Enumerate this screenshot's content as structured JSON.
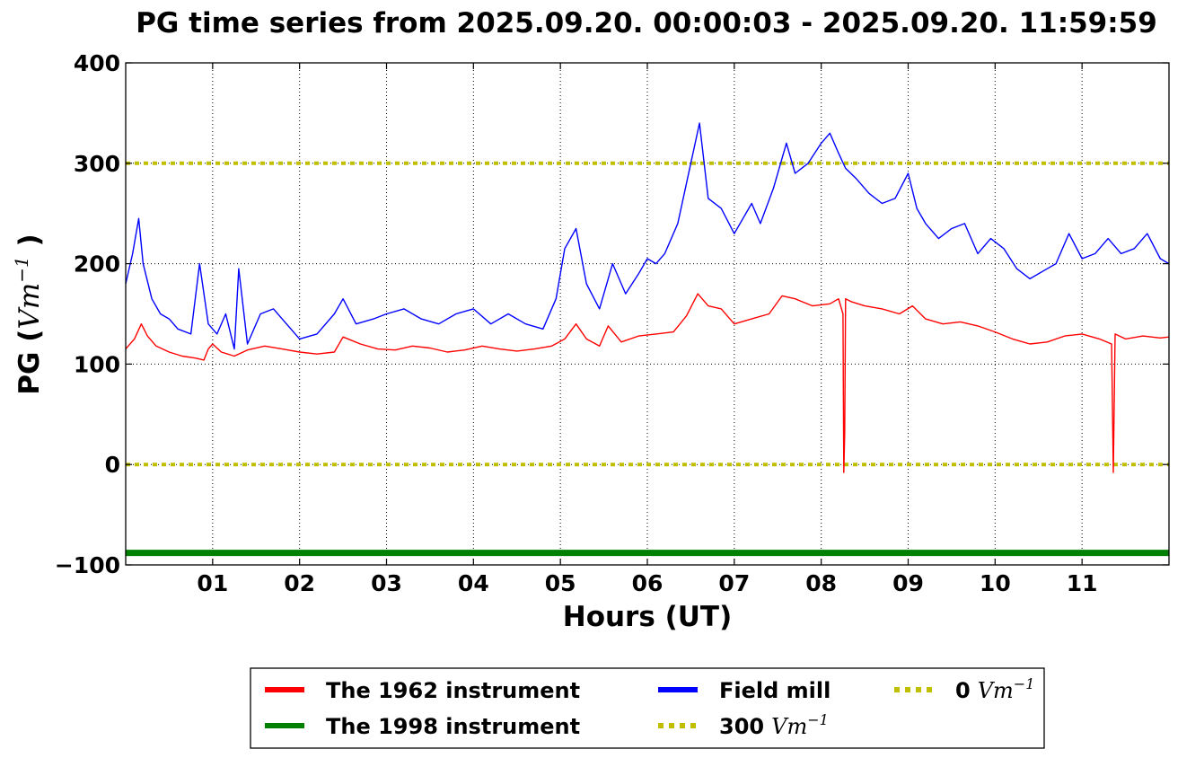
{
  "chart_data": {
    "type": "line",
    "title": "PG time series from 2025.09.20. 00:00:03 - 2025.09.20. 11:59:59",
    "xlabel": "Hours (UT)",
    "ylabel": {
      "prefix": "PG (",
      "unit": "Vm",
      "exp": "−1",
      "suffix": " )"
    },
    "xlim": [
      0,
      12
    ],
    "ylim": [
      -100,
      400
    ],
    "xticks": [
      {
        "v": 1,
        "label": "01"
      },
      {
        "v": 2,
        "label": "02"
      },
      {
        "v": 3,
        "label": "03"
      },
      {
        "v": 4,
        "label": "04"
      },
      {
        "v": 5,
        "label": "05"
      },
      {
        "v": 6,
        "label": "06"
      },
      {
        "v": 7,
        "label": "07"
      },
      {
        "v": 8,
        "label": "08"
      },
      {
        "v": 9,
        "label": "09"
      },
      {
        "v": 10,
        "label": "10"
      },
      {
        "v": 11,
        "label": "11"
      }
    ],
    "yticks": [
      {
        "v": -100,
        "label": "−100"
      },
      {
        "v": 0,
        "label": "0"
      },
      {
        "v": 100,
        "label": "100"
      },
      {
        "v": 200,
        "label": "200"
      },
      {
        "v": 300,
        "label": "300"
      },
      {
        "v": 400,
        "label": "400"
      }
    ],
    "grid": true,
    "legend_position": "below",
    "series": [
      {
        "name": "The 1962 instrument",
        "color": "#ff0000",
        "x": [
          0.0,
          0.1,
          0.18,
          0.25,
          0.35,
          0.5,
          0.65,
          0.8,
          0.9,
          0.95,
          1.0,
          1.1,
          1.25,
          1.4,
          1.6,
          1.8,
          2.0,
          2.2,
          2.4,
          2.5,
          2.7,
          2.9,
          3.1,
          3.3,
          3.5,
          3.7,
          3.9,
          4.1,
          4.3,
          4.5,
          4.7,
          4.9,
          5.05,
          5.18,
          5.3,
          5.45,
          5.55,
          5.7,
          5.9,
          6.1,
          6.3,
          6.45,
          6.58,
          6.7,
          6.85,
          7.0,
          7.2,
          7.4,
          7.55,
          7.7,
          7.9,
          8.1,
          8.2,
          8.25,
          8.26,
          8.27,
          8.28,
          8.35,
          8.5,
          8.7,
          8.9,
          9.05,
          9.2,
          9.4,
          9.6,
          9.8,
          10.0,
          10.2,
          10.4,
          10.6,
          10.8,
          11.0,
          11.2,
          11.34,
          11.36,
          11.38,
          11.5,
          11.7,
          11.9,
          12.0
        ],
        "y": [
          115,
          125,
          140,
          128,
          118,
          112,
          108,
          106,
          104,
          115,
          120,
          112,
          108,
          114,
          118,
          115,
          112,
          110,
          112,
          127,
          120,
          115,
          114,
          118,
          116,
          112,
          114,
          118,
          115,
          113,
          115,
          118,
          125,
          140,
          125,
          118,
          138,
          122,
          128,
          130,
          132,
          148,
          170,
          158,
          155,
          140,
          145,
          150,
          168,
          165,
          158,
          160,
          165,
          150,
          -8,
          30,
          165,
          162,
          158,
          155,
          150,
          158,
          145,
          140,
          142,
          138,
          132,
          125,
          120,
          122,
          128,
          130,
          125,
          120,
          -8,
          130,
          125,
          128,
          126,
          127
        ]
      },
      {
        "name": "The 1998 instrument",
        "color": "#008000",
        "x": [
          0,
          12
        ],
        "y": [
          -88,
          -88
        ]
      },
      {
        "name": "Field mill",
        "color": "#0000ff",
        "x": [
          0.0,
          0.08,
          0.15,
          0.2,
          0.3,
          0.4,
          0.5,
          0.6,
          0.75,
          0.85,
          0.95,
          1.05,
          1.15,
          1.25,
          1.3,
          1.4,
          1.55,
          1.7,
          1.85,
          2.0,
          2.2,
          2.4,
          2.5,
          2.65,
          2.85,
          3.0,
          3.2,
          3.4,
          3.6,
          3.8,
          4.0,
          4.2,
          4.4,
          4.6,
          4.8,
          4.95,
          5.05,
          5.18,
          5.3,
          5.45,
          5.6,
          5.75,
          5.9,
          6.0,
          6.1,
          6.2,
          6.35,
          6.5,
          6.6,
          6.7,
          6.85,
          7.0,
          7.1,
          7.2,
          7.3,
          7.45,
          7.6,
          7.7,
          7.85,
          8.0,
          8.1,
          8.2,
          8.28,
          8.4,
          8.55,
          8.7,
          8.85,
          9.0,
          9.1,
          9.2,
          9.35,
          9.5,
          9.65,
          9.8,
          9.95,
          10.1,
          10.25,
          10.4,
          10.6,
          10.7,
          10.85,
          11.0,
          11.15,
          11.3,
          11.45,
          11.6,
          11.75,
          11.9,
          12.0
        ],
        "y": [
          180,
          210,
          245,
          200,
          165,
          150,
          145,
          135,
          130,
          200,
          140,
          130,
          150,
          115,
          195,
          120,
          150,
          155,
          140,
          125,
          130,
          150,
          165,
          140,
          145,
          150,
          155,
          145,
          140,
          150,
          155,
          140,
          150,
          140,
          135,
          165,
          215,
          235,
          180,
          155,
          200,
          170,
          190,
          205,
          200,
          210,
          240,
          300,
          340,
          265,
          255,
          230,
          245,
          260,
          240,
          275,
          320,
          290,
          300,
          320,
          330,
          310,
          295,
          285,
          270,
          260,
          265,
          290,
          255,
          240,
          225,
          235,
          240,
          210,
          225,
          215,
          195,
          185,
          195,
          200,
          230,
          205,
          210,
          225,
          210,
          215,
          230,
          205,
          200
        ]
      }
    ],
    "reference_lines": [
      {
        "name": "300 Vm⁻¹",
        "value": 300,
        "color": "#bfbf00"
      },
      {
        "name": "0 Vm⁻¹",
        "value": 0,
        "color": "#bfbf00"
      }
    ]
  },
  "legend": [
    {
      "label": "The 1962 instrument",
      "color": "#ff0000",
      "style": "solid"
    },
    {
      "label": "The 1998 instrument",
      "color": "#008000",
      "style": "solid"
    },
    {
      "label": "Field mill",
      "color": "#0000ff",
      "style": "solid"
    },
    {
      "label": "300",
      "unit": "Vm",
      "exp": "−1",
      "color": "#bfbf00",
      "style": "dotted"
    },
    {
      "label": "0",
      "unit": "Vm",
      "exp": "−1",
      "color": "#bfbf00",
      "style": "dotted"
    }
  ]
}
